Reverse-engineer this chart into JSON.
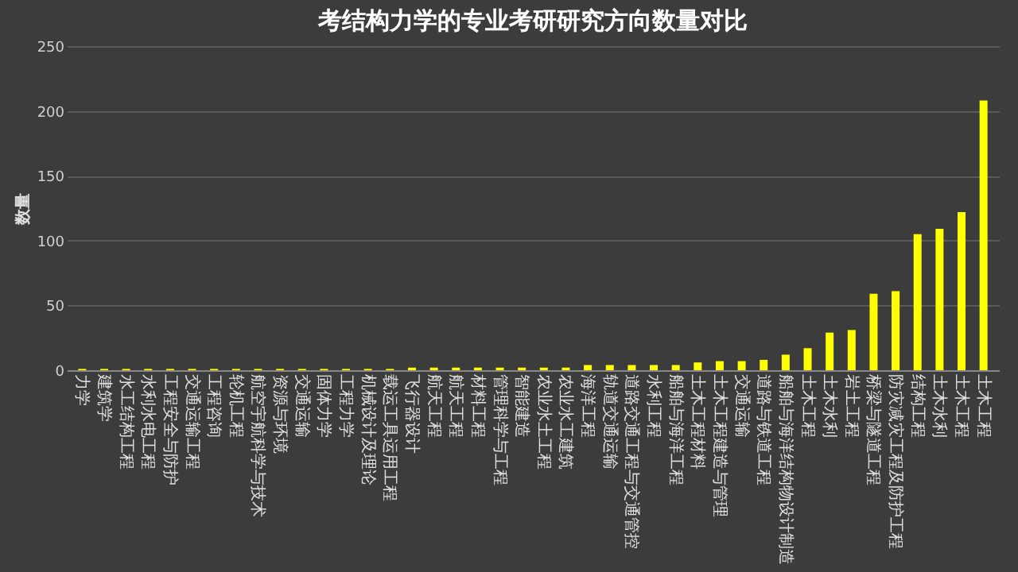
{
  "chart_data": {
    "type": "bar",
    "title": "考结构力学的专业考研研究方向数量对比",
    "ylabel": "数量",
    "categories": [
      "力学",
      "建筑学",
      "水工结构工程",
      "水利水电工程",
      "工程安全与防护",
      "交通运输工程",
      "工程咨询",
      "轮机工程",
      "航空宇航科学与技术",
      "资源与环境",
      "交通运输",
      "固体力学",
      "工程力学",
      "机械设计及理论",
      "载运工具运用工程",
      "飞行器设计",
      "航天工程",
      "航天工程",
      "材料工程",
      "管理科学与工程",
      "智能建造",
      "农业水土工程",
      "农业水工建筑",
      "海洋工程",
      "轨道交通运输",
      "道路交通工程与交通管控",
      "水利工程",
      "船舶与海洋工程",
      "土木工程材料",
      "土木工程建造与管理",
      "交通运输",
      "道路与铁道工程",
      "船舶与海洋结构物设计制造",
      "土木工程",
      "土木水利",
      "岩土工程",
      "桥梁与隧道工程",
      "防灾减灾工程及防护工程",
      "结构工程",
      "土木水利",
      "土木工程",
      "土木工程"
    ],
    "values": [
      1,
      1,
      1,
      1,
      1,
      1,
      1,
      1,
      1,
      1,
      1,
      1,
      1,
      1,
      1,
      2,
      2,
      2,
      2,
      2,
      2,
      2,
      2,
      4,
      4,
      4,
      4,
      4,
      6,
      7,
      7,
      8,
      12,
      17,
      29,
      31,
      59,
      61,
      105,
      109,
      122,
      208
    ],
    "color": "#ffff00",
    "ylim": [
      0,
      250
    ],
    "yticks": [
      0,
      50,
      100,
      150,
      200,
      250
    ],
    "grid": "y"
  }
}
